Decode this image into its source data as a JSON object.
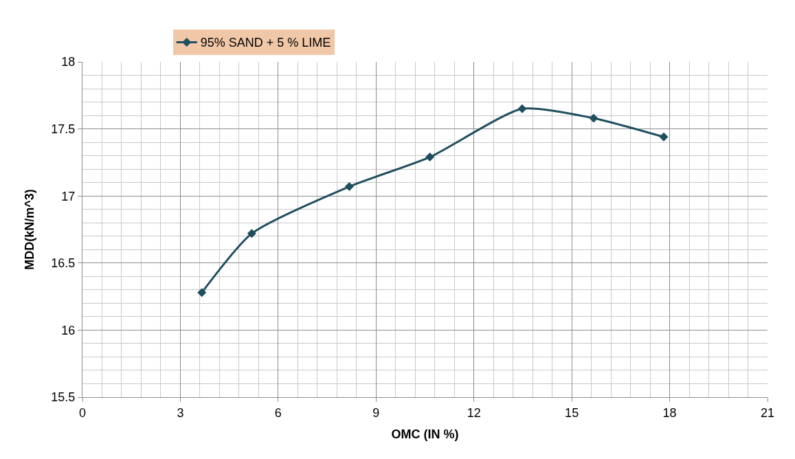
{
  "chart_data": {
    "type": "line",
    "xlabel": "OMC (IN %)",
    "ylabel": "MDD(kN/m^3)",
    "x": [
      3.66,
      5.19,
      8.18,
      10.65,
      13.48,
      15.67,
      17.82
    ],
    "series": [
      {
        "name": "95% SAND + 5 % LIME",
        "color": "#1f4e5f",
        "values": [
          16.28,
          16.72,
          17.07,
          17.29,
          17.65,
          17.58,
          17.44
        ]
      }
    ],
    "xlim": [
      0,
      21
    ],
    "xticks": [
      0,
      3,
      6,
      9,
      12,
      15,
      18,
      21
    ],
    "ylim": [
      15.5,
      18
    ],
    "yticks": [
      15.5,
      16,
      16.5,
      17,
      17.5,
      18
    ],
    "grid": true,
    "legend": "top",
    "marker": "diamond",
    "line_style": "solid"
  }
}
